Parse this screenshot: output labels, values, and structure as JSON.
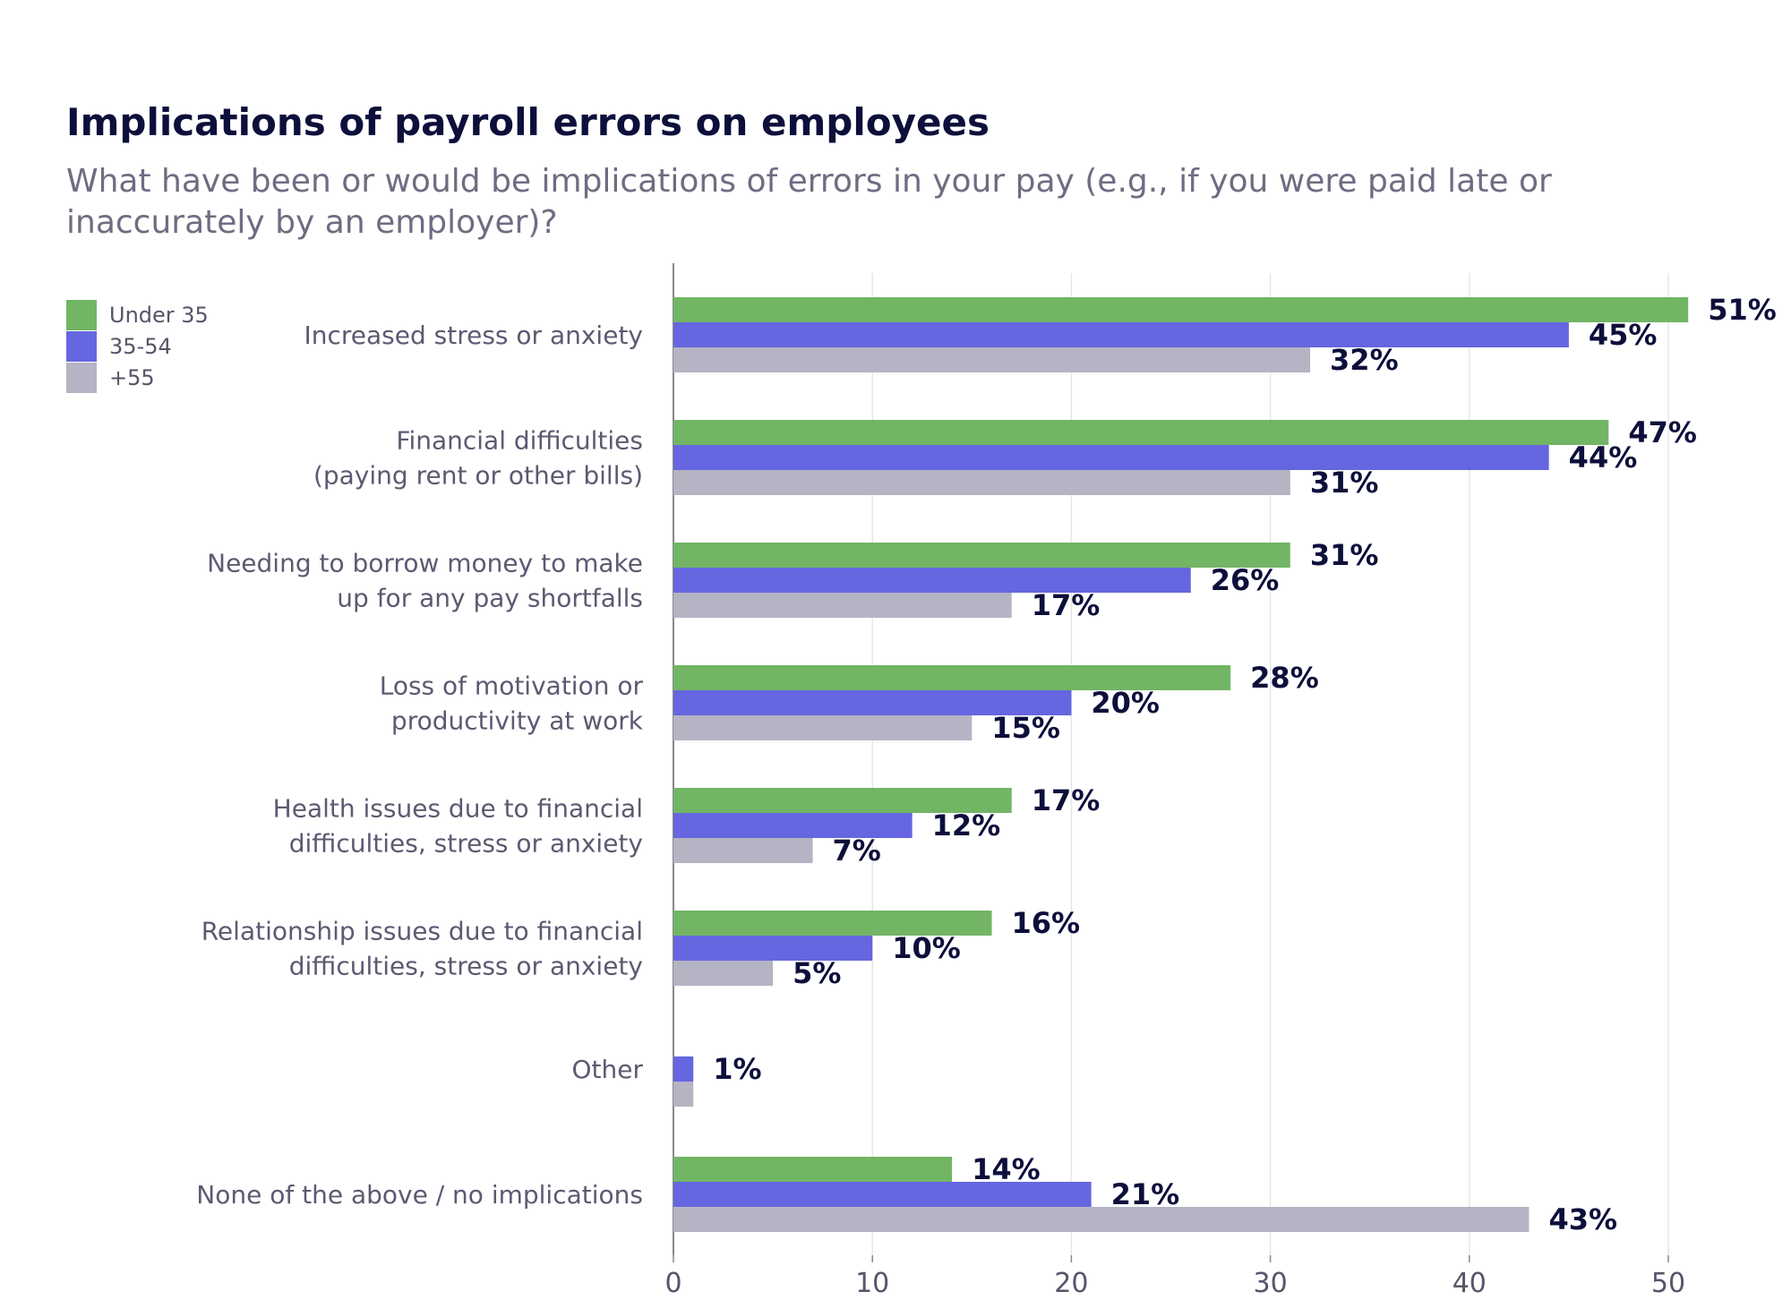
{
  "title": "Implications of payroll errors on employees",
  "subtitle": "What have been or would be implications of errors in your pay (e.g., if you were paid late or inaccurately by an employer)?",
  "colors": {
    "under35": "#72b565",
    "35_54": "#6666e0",
    "55plus": "#b4b4c4",
    "label": "#0d0f3b",
    "category": "#5a5a72",
    "grid": "#e6e6e6",
    "axis": "#888888"
  },
  "legend": [
    {
      "label": "Under 35",
      "color": "#72b565"
    },
    {
      "label": "35-54",
      "color": "#6666e0"
    },
    {
      "label": "+55",
      "color": "#b4b4c4"
    }
  ],
  "chart_data": {
    "type": "bar",
    "orientation": "horizontal",
    "categories": [
      [
        "Increased stress or anxiety"
      ],
      [
        "Financial difficulties",
        "(paying rent or other bills)"
      ],
      [
        "Needing to borrow money to make",
        "up for any pay shortfalls"
      ],
      [
        "Loss of motivation or",
        "productivity at work"
      ],
      [
        "Health issues due to financial",
        "difficulties, stress or anxiety"
      ],
      [
        "Relationship issues due to financial",
        "difficulties, stress or anxiety"
      ],
      [
        "Other"
      ],
      [
        "None of the above / no implications"
      ]
    ],
    "series": [
      {
        "name": "Under 35",
        "color": "#72b565",
        "values": [
          51,
          47,
          31,
          28,
          17,
          16,
          null,
          14
        ]
      },
      {
        "name": "35-54",
        "color": "#6666e0",
        "values": [
          45,
          44,
          26,
          20,
          12,
          10,
          1,
          21
        ]
      },
      {
        "name": "+55",
        "color": "#b4b4c4",
        "values": [
          32,
          31,
          17,
          15,
          7,
          5,
          1,
          43
        ]
      }
    ],
    "data_labels": [
      [
        "51%",
        "45%",
        "32%"
      ],
      [
        "47%",
        "44%",
        "31%"
      ],
      [
        "31%",
        "26%",
        "17%"
      ],
      [
        "28%",
        "20%",
        "15%"
      ],
      [
        "17%",
        "12%",
        "7%"
      ],
      [
        "16%",
        "10%",
        "5%"
      ],
      [
        null,
        "1%",
        null
      ],
      [
        "14%",
        "21%",
        "43%"
      ]
    ],
    "x_ticks": [
      0,
      10,
      20,
      30,
      40,
      50
    ],
    "xlim": [
      0,
      55
    ],
    "grid": true,
    "legend_position": "top-left"
  }
}
